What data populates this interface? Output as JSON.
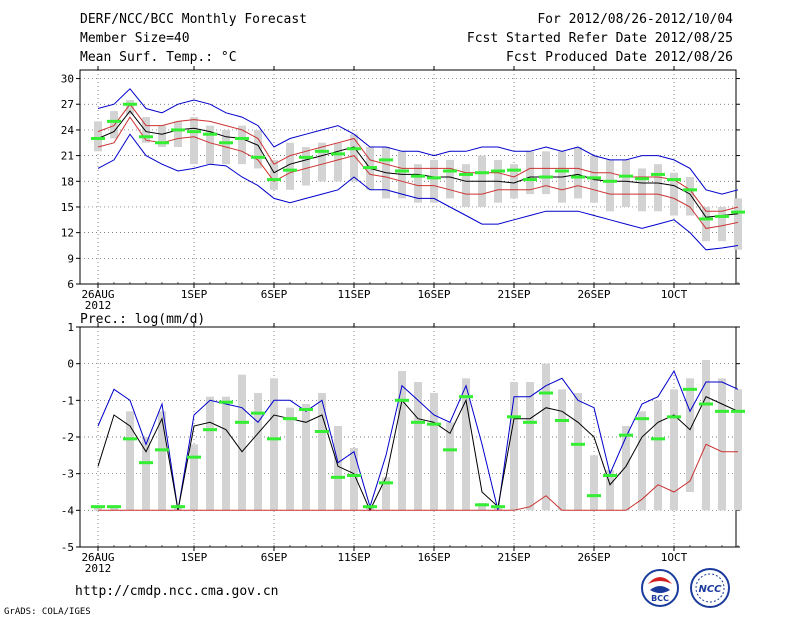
{
  "header": {
    "title": "DERF/NCC/BCC Monthly Forecast",
    "member_size": "Member Size=40",
    "variable": "Mean Surf. Temp.: °C",
    "period": "For 2012/08/26-2012/10/04",
    "start_date": "Fcst Started Refer Date 2012/08/25",
    "produced_date": "Fcst Produced Date 2012/08/26"
  },
  "footer": {
    "url": "http://cmdp.ncc.cma.gov.cn",
    "grads": "GrADS: COLA/IGES",
    "logo_bcc": "BCC",
    "logo_ncc": "NCC"
  },
  "chart_data": [
    {
      "type": "line",
      "title": "Mean Surf. Temp.: °C",
      "ylim": [
        6,
        31
      ],
      "yticks": [
        6,
        9,
        12,
        15,
        18,
        21,
        24,
        27,
        30
      ],
      "xlim": [
        0,
        40
      ],
      "xticks": [
        {
          "day": 0,
          "label": "26AUG",
          "sub": "2012"
        },
        {
          "day": 6,
          "label": "1SEP"
        },
        {
          "day": 11,
          "label": "6SEP"
        },
        {
          "day": 16,
          "label": "11SEP"
        },
        {
          "day": 21,
          "label": "16SEP"
        },
        {
          "day": 26,
          "label": "21SEP"
        },
        {
          "day": 31,
          "label": "26SEP"
        },
        {
          "day": 36,
          "label": "1OCT"
        }
      ],
      "colors": {
        "box": "#d3d3d3",
        "observed": "#33ee33",
        "mean": "#000000",
        "spread": "#cc3333",
        "envelope": "#0000cc"
      },
      "series": [
        {
          "name": "max",
          "values": [
            19.5,
            20.5,
            23.5,
            21,
            20,
            19.2,
            19.5,
            20,
            19.8,
            18.5,
            17.5,
            16,
            15.5,
            16,
            16.5,
            17,
            18.5,
            17,
            17,
            16.5,
            16,
            16,
            15,
            14,
            13,
            13,
            13.5,
            14,
            14.5,
            14.5,
            14.5,
            14,
            13.5,
            13,
            12.5,
            13,
            13.5,
            12,
            10,
            10.2,
            10.5
          ]
        },
        {
          "name": "max_env",
          "values": [
            26.5,
            27,
            28.8,
            26.5,
            26,
            27,
            27.5,
            27,
            26,
            25.5,
            24.5,
            22,
            23,
            23.5,
            24,
            24.5,
            23.5,
            22,
            22,
            21.5,
            21.5,
            21,
            21.5,
            21.5,
            22,
            22,
            21.5,
            21.5,
            22,
            21.5,
            22,
            21,
            20.5,
            20.5,
            21,
            21,
            20.5,
            19.5,
            17,
            16.5,
            17
          ]
        },
        {
          "name": "upper",
          "values": [
            23.8,
            24.5,
            27,
            24.5,
            24.5,
            25,
            25.2,
            25,
            24.5,
            24,
            23,
            20,
            21,
            21.5,
            22,
            22.5,
            23,
            20.5,
            20,
            19.5,
            19.5,
            19.5,
            19.5,
            19,
            19,
            19,
            18.5,
            19.5,
            19.5,
            19.5,
            19.5,
            19,
            19,
            18.5,
            18.5,
            18.5,
            18.2,
            17,
            14.5,
            14.5,
            15
          ]
        },
        {
          "name": "mean",
          "values": [
            23,
            23.8,
            26.2,
            23.8,
            23.5,
            24,
            24.2,
            23.8,
            23.2,
            23,
            22.2,
            19,
            20,
            20.5,
            21,
            21.5,
            22,
            19.5,
            19,
            18.8,
            18.8,
            18.5,
            18.5,
            18,
            18,
            18,
            17.8,
            18.5,
            18.5,
            18.5,
            18.8,
            18.2,
            18,
            18,
            17.8,
            17.8,
            17.5,
            16.5,
            13.8,
            14,
            14.2
          ]
        },
        {
          "name": "lower",
          "values": [
            22,
            22.5,
            25.5,
            22.8,
            22.5,
            23,
            23.2,
            22.5,
            22,
            21.5,
            20.5,
            18,
            19,
            19.5,
            20,
            20.5,
            21,
            18.8,
            18.5,
            18,
            17.5,
            17.5,
            17,
            16.5,
            16.5,
            17,
            17,
            17,
            17.5,
            17,
            17.5,
            17,
            16.5,
            16.5,
            16.5,
            16.5,
            16,
            15,
            12.5,
            12.8,
            13.2
          ]
        }
      ],
      "boxes": [
        [
          21.5,
          25
        ],
        [
          23,
          26.2
        ],
        [
          25.8,
          27.5
        ],
        [
          22.5,
          25.5
        ],
        [
          22,
          24.5
        ],
        [
          22,
          25
        ],
        [
          20,
          25.5
        ],
        [
          20,
          24.5
        ],
        [
          20,
          24
        ],
        [
          20,
          24.5
        ],
        [
          19.5,
          24
        ],
        [
          17,
          20.5
        ],
        [
          17,
          22.5
        ],
        [
          17.5,
          22
        ],
        [
          18,
          22.5
        ],
        [
          18,
          22.5
        ],
        [
          18,
          23.5
        ],
        [
          17,
          22
        ],
        [
          16,
          22
        ],
        [
          16,
          21.5
        ],
        [
          15.5,
          20
        ],
        [
          15.5,
          20.5
        ],
        [
          16,
          20.5
        ],
        [
          15,
          20
        ],
        [
          15,
          21
        ],
        [
          15.5,
          20.5
        ],
        [
          16,
          20
        ],
        [
          16.5,
          21.5
        ],
        [
          16.5,
          21.5
        ],
        [
          15.5,
          21.5
        ],
        [
          16,
          22
        ],
        [
          15.5,
          21
        ],
        [
          14.5,
          20.5
        ],
        [
          15,
          20.5
        ],
        [
          14.5,
          19.5
        ],
        [
          14.5,
          20
        ],
        [
          14,
          19
        ],
        [
          14,
          18.5
        ],
        [
          11,
          15
        ],
        [
          11,
          15
        ],
        [
          10,
          16
        ]
      ],
      "observed": [
        23,
        25,
        27,
        23.2,
        22.5,
        24,
        23.8,
        23.5,
        22.5,
        23,
        20.8,
        18.2,
        19.3,
        20.8,
        21.5,
        21.2,
        21.8,
        19.6,
        20.5,
        19.2,
        18.6,
        18.4,
        19.2,
        18.8,
        19,
        19.2,
        19.3,
        18.2,
        18.5,
        19.2,
        18.5,
        18.4,
        18,
        18.6,
        18.3,
        18.8,
        18.2,
        17,
        13.6,
        13.9,
        14.4
      ]
    },
    {
      "type": "line",
      "title": "Prec.: log(mm/d)",
      "ylim": [
        -5,
        1
      ],
      "yticks": [
        -5,
        -4,
        -3,
        -2,
        -1,
        0,
        1
      ],
      "xlim": [
        0,
        40
      ],
      "xticks": [
        {
          "day": 0,
          "label": "26AUG",
          "sub": "2012"
        },
        {
          "day": 6,
          "label": "1SEP"
        },
        {
          "day": 11,
          "label": "6SEP"
        },
        {
          "day": 16,
          "label": "11SEP"
        },
        {
          "day": 21,
          "label": "16SEP"
        },
        {
          "day": 26,
          "label": "21SEP"
        },
        {
          "day": 31,
          "label": "26SEP"
        },
        {
          "day": 36,
          "label": "1OCT"
        }
      ],
      "colors": {
        "box": "#d3d3d3",
        "observed": "#33ee33",
        "mean": "#000000",
        "spread": "#cc3333",
        "envelope": "#0000cc"
      },
      "series": [
        {
          "name": "upper_env",
          "values": [
            -1.7,
            -0.7,
            -1,
            -2.2,
            -1.1,
            -4,
            -1.4,
            -1,
            -1.1,
            -1.2,
            -1.6,
            -1,
            -1,
            -1.3,
            -1,
            -2.7,
            -2.4,
            -3.9,
            -2.5,
            -0.6,
            -1,
            -1.4,
            -1.6,
            -0.6,
            -2.2,
            -4,
            -0.9,
            -0.9,
            -0.6,
            -0.4,
            -1,
            -1.2,
            -3,
            -2,
            -1.1,
            -0.9,
            -0.2,
            -1.3,
            -0.5,
            -0.5,
            -0.7
          ]
        },
        {
          "name": "mean",
          "values": [
            -2.8,
            -1.4,
            -1.7,
            -2.4,
            -1.5,
            -4,
            -1.7,
            -1.6,
            -1.8,
            -2.4,
            -1.9,
            -1.4,
            -1.5,
            -1.6,
            -1.4,
            -2.8,
            -3,
            -4,
            -3.1,
            -1,
            -1.5,
            -1.6,
            -1.9,
            -1,
            -3.5,
            -3.9,
            -1.5,
            -1.5,
            -1.2,
            -1.3,
            -1.6,
            -2,
            -3.3,
            -2.8,
            -2,
            -1.6,
            -1.4,
            -1.8,
            -0.9,
            -1.1,
            -1.3
          ]
        },
        {
          "name": "spread",
          "values": [
            -4,
            -4,
            -4,
            -4,
            -4,
            -4,
            -4,
            -4,
            -4,
            -4,
            -4,
            -4,
            -4,
            -4,
            -4,
            -4,
            -4,
            -4,
            -4,
            -4,
            -4,
            -4,
            -4,
            -4,
            -4,
            -4,
            -4,
            -3.9,
            -3.6,
            -4,
            -4,
            -4,
            -4,
            -4,
            -3.7,
            -3.3,
            -3.5,
            -3.2,
            -2.2,
            -2.4,
            -2.4
          ]
        }
      ],
      "boxes": [
        [
          -4,
          -3.9
        ],
        [
          -4,
          -3.9
        ],
        [
          -4,
          -1.3
        ],
        [
          -4,
          -2
        ],
        [
          -4,
          -1.3
        ],
        [
          -4,
          -3.9
        ],
        [
          -4,
          -2.2
        ],
        [
          -4,
          -0.9
        ],
        [
          -4,
          -0.9
        ],
        [
          -4,
          -0.3
        ],
        [
          -4,
          -0.8
        ],
        [
          -4,
          -0.4
        ],
        [
          -4,
          -1.2
        ],
        [
          -4,
          -1.1
        ],
        [
          -4,
          -0.8
        ],
        [
          -4,
          -1.7
        ],
        [
          -4,
          -2.3
        ],
        [
          -4,
          -3.9
        ],
        [
          -4,
          -3.1
        ],
        [
          -4,
          -0.2
        ],
        [
          -4,
          -0.5
        ],
        [
          -4,
          -0.8
        ],
        [
          -4,
          -1.6
        ],
        [
          -4,
          -0.4
        ],
        [
          -4,
          -3.8
        ],
        [
          -4,
          -3.9
        ],
        [
          -4,
          -0.5
        ],
        [
          -4,
          -0.5
        ],
        [
          -4,
          0.0
        ],
        [
          -4,
          -0.7
        ],
        [
          -4,
          -0.8
        ],
        [
          -4,
          -2.5
        ],
        [
          -4,
          -2.9
        ],
        [
          -4,
          -1.7
        ],
        [
          -4,
          -1.3
        ],
        [
          -4,
          -1.0
        ],
        [
          -4,
          -0.7
        ],
        [
          -3.5,
          -0.4
        ],
        [
          -4,
          0.1
        ],
        [
          -4,
          -0.4
        ],
        [
          -4,
          -0.7
        ]
      ],
      "observed": [
        -3.9,
        -3.9,
        -2.05,
        -2.7,
        -2.35,
        -3.9,
        -2.55,
        -1.8,
        -1.05,
        -1.6,
        -1.35,
        -2.05,
        -1.5,
        -1.25,
        -1.85,
        -3.1,
        -3.05,
        -3.9,
        -3.25,
        -1,
        -1.6,
        -1.65,
        -2.35,
        -0.9,
        -3.85,
        -3.9,
        -1.45,
        -1.6,
        -0.8,
        -1.55,
        -2.2,
        -3.6,
        -3.05,
        -1.95,
        -1.5,
        -2.05,
        -1.45,
        -0.7,
        -1.1,
        -1.3,
        -1.3
      ]
    }
  ]
}
